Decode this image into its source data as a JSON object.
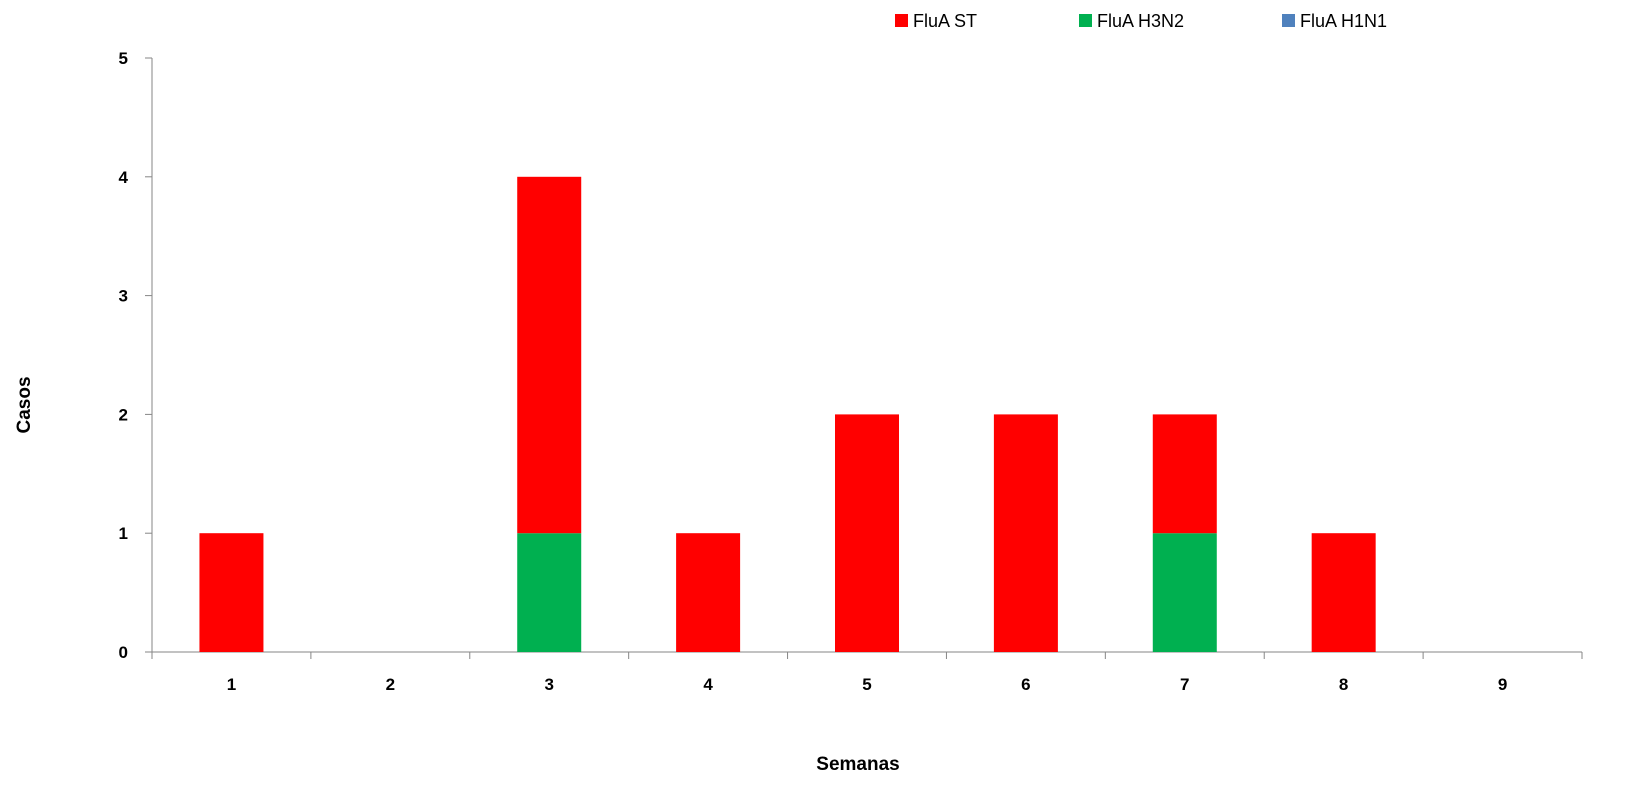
{
  "chart_data": {
    "type": "bar",
    "stacked": true,
    "title": "",
    "xlabel": "Semanas",
    "ylabel": "Casos",
    "categories": [
      "1",
      "2",
      "3",
      "4",
      "5",
      "6",
      "7",
      "8",
      "9"
    ],
    "series": [
      {
        "name": "FluA H1N1",
        "color": "#4F81BD",
        "values": [
          0,
          0,
          0,
          0,
          0,
          0,
          0,
          0,
          0
        ]
      },
      {
        "name": "FluA H3N2",
        "color": "#00B050",
        "values": [
          0,
          0,
          1,
          0,
          0,
          0,
          1,
          0,
          0
        ]
      },
      {
        "name": "FluA ST",
        "color": "#FF0000",
        "values": [
          1,
          0,
          3,
          1,
          2,
          2,
          1,
          1,
          0
        ]
      }
    ],
    "legend_order": [
      "FluA ST",
      "FluA H3N2",
      "FluA H1N1"
    ],
    "ylim": [
      0,
      5
    ],
    "yticks": [
      0,
      1,
      2,
      3,
      4,
      5
    ],
    "grid": false,
    "legend_position": "top-right"
  }
}
